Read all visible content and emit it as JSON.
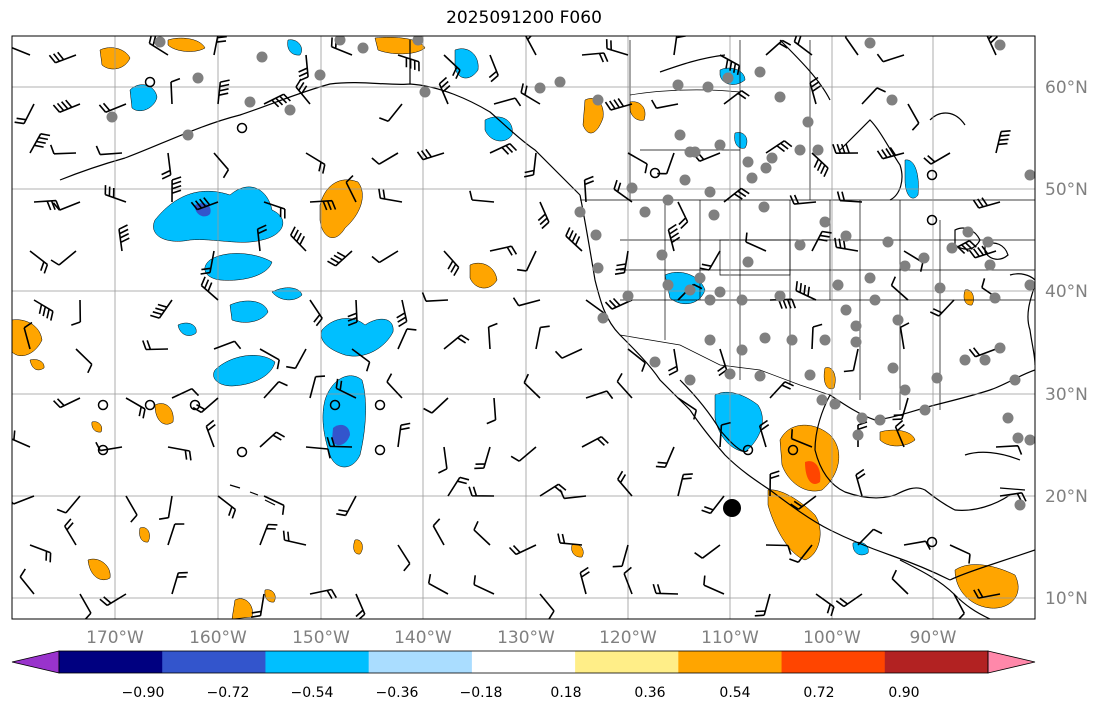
{
  "title": "2025091200 F060",
  "longitude_labels": [
    "170°W",
    "160°W",
    "150°W",
    "140°W",
    "130°W",
    "120°W",
    "110°W",
    "100°W",
    "90°W"
  ],
  "latitude_labels": [
    "60°N",
    "50°N",
    "40°N",
    "30°N",
    "20°N",
    "10°N"
  ],
  "colorbar": {
    "tick_labels": [
      "−0.90",
      "−0.72",
      "−0.54",
      "−0.36",
      "−0.18",
      "0.18",
      "0.36",
      "0.54",
      "0.72",
      "0.90"
    ],
    "colors": [
      "#9933cc",
      "#000080",
      "#3355cc",
      "#00bfff",
      "#aaddff",
      "#ffffff",
      "#ffee88",
      "#ffa500",
      "#ff4500",
      "#b22222",
      "#ff88aa"
    ]
  },
  "shading_colors": {
    "neg_light": "#aaddff",
    "neg_mid": "#00bfff",
    "neg_strong": "#3355cc",
    "pos_light": "#ffee88",
    "pos_mid": "#ffa500",
    "pos_strong": "#ff4500"
  }
}
